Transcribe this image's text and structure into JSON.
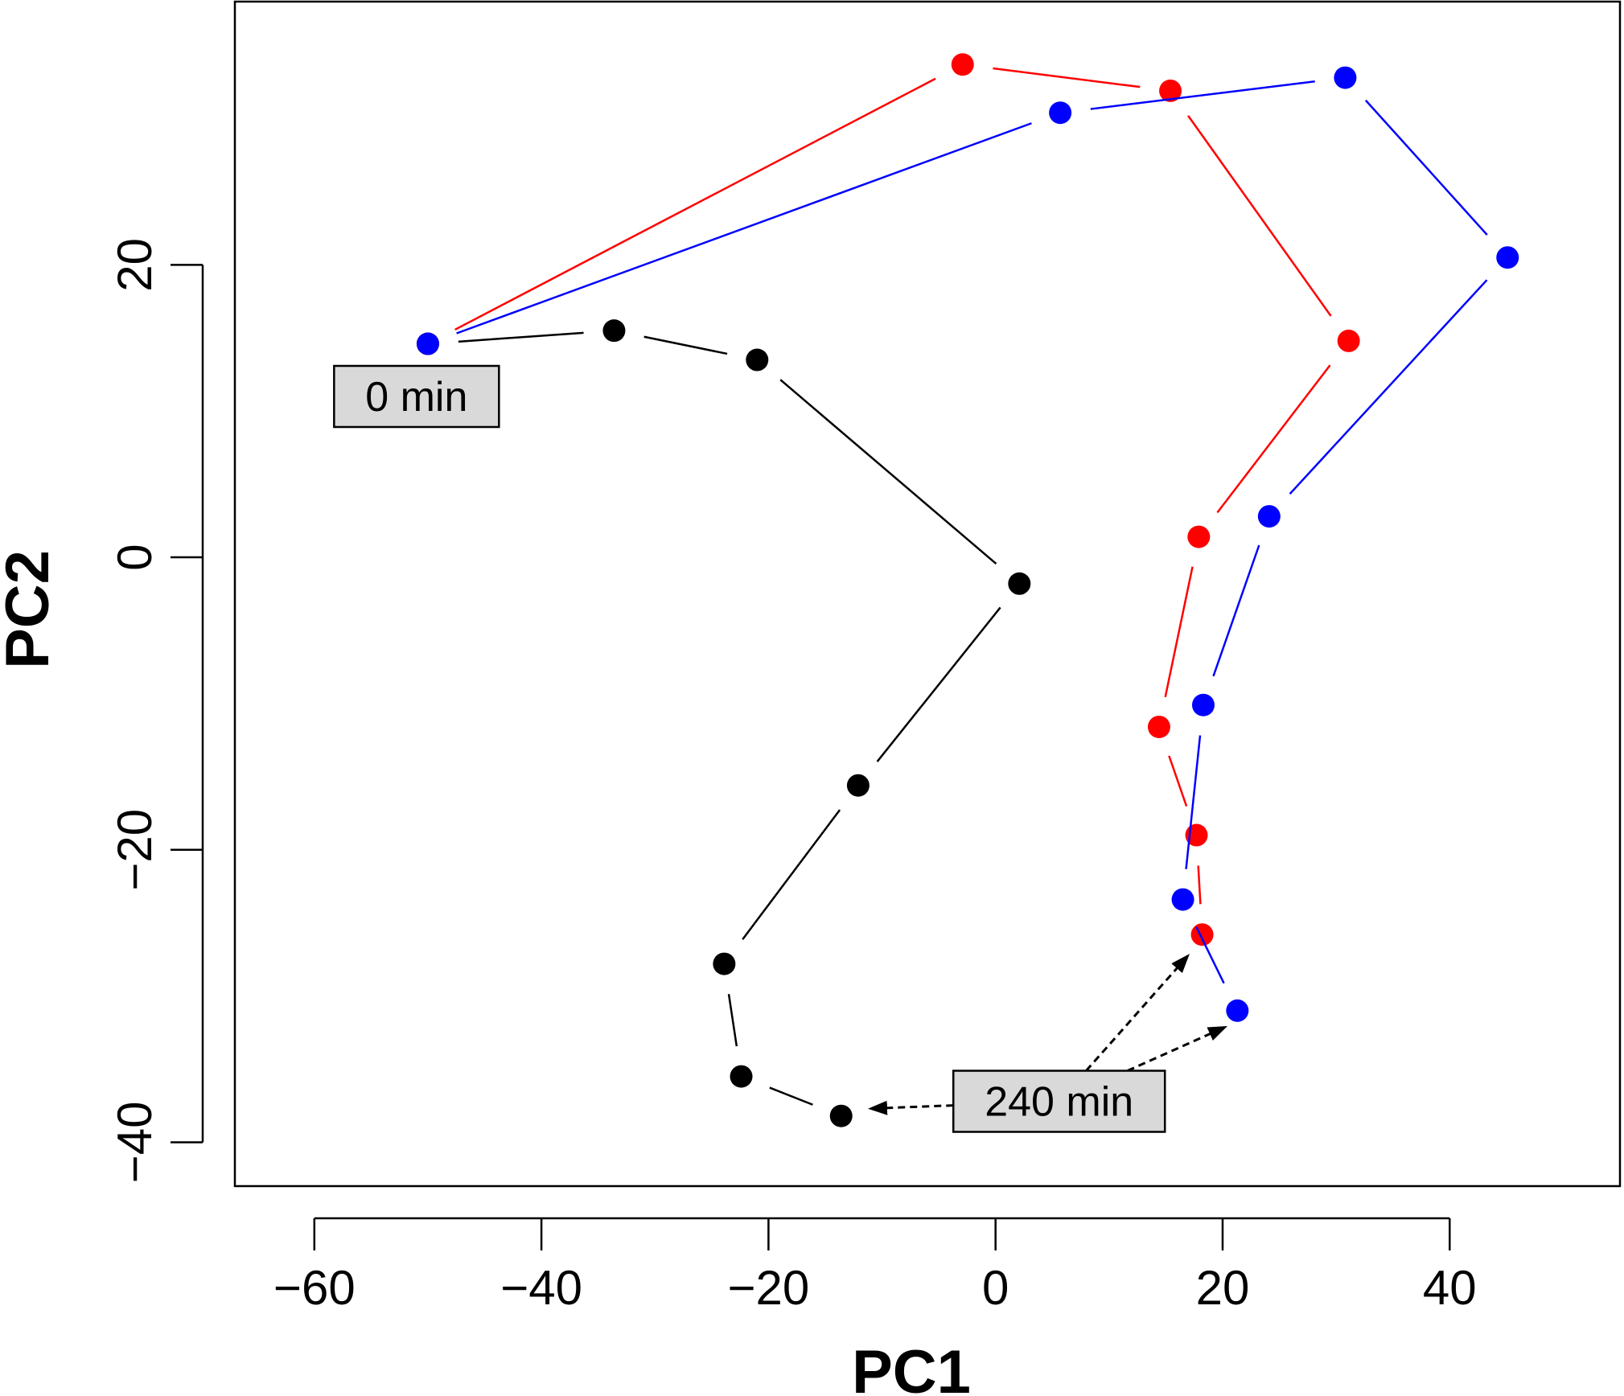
{
  "chart_data": {
    "type": "line",
    "title": "",
    "xlabel": "PC1",
    "ylabel": "PC2",
    "xlim": [
      -67,
      55
    ],
    "ylim": [
      -43,
      38
    ],
    "x_ticks": [
      -60,
      -40,
      -20,
      0,
      20,
      40
    ],
    "y_ticks": [
      20,
      0,
      -20,
      -40
    ],
    "x_tick_labels": [
      "−60",
      "−40",
      "−20",
      "0",
      "20",
      "40"
    ],
    "y_tick_labels": [
      "20",
      "0",
      "−20",
      "−40"
    ],
    "series": [
      {
        "name": "black",
        "color": "#000000",
        "points": [
          {
            "x": -50,
            "y": 14.6
          },
          {
            "x": -33.6,
            "y": 15.5
          },
          {
            "x": -21,
            "y": 13.5
          },
          {
            "x": 2.1,
            "y": -1.8
          },
          {
            "x": -12.1,
            "y": -15.6
          },
          {
            "x": -23.9,
            "y": -27.8
          },
          {
            "x": -22.4,
            "y": -35.5
          },
          {
            "x": -13.6,
            "y": -38.2
          }
        ]
      },
      {
        "name": "red",
        "color": "#ff0000",
        "points": [
          {
            "x": -50,
            "y": 14.6
          },
          {
            "x": -2.9,
            "y": 33.7
          },
          {
            "x": 15.4,
            "y": 31.9
          },
          {
            "x": 31.1,
            "y": 14.8
          },
          {
            "x": 17.9,
            "y": 1.4
          },
          {
            "x": 14.4,
            "y": -11.6
          },
          {
            "x": 17.7,
            "y": -19.0
          },
          {
            "x": 18.2,
            "y": -25.8
          }
        ]
      },
      {
        "name": "blue",
        "color": "#0000ff",
        "points": [
          {
            "x": -50,
            "y": 14.6
          },
          {
            "x": 5.7,
            "y": 30.4
          },
          {
            "x": 30.8,
            "y": 32.8
          },
          {
            "x": 45.1,
            "y": 20.5
          },
          {
            "x": 24.1,
            "y": 2.8
          },
          {
            "x": 18.3,
            "y": -10.1
          },
          {
            "x": 16.5,
            "y": -23.4
          },
          {
            "x": 21.3,
            "y": -31.0
          }
        ]
      }
    ],
    "annotations": [
      {
        "text": "0 min",
        "anchor_x": -51,
        "anchor_y": 11,
        "arrows_to": []
      },
      {
        "text": "240 min",
        "anchor_x": 5.6,
        "anchor_y": -37.2,
        "arrows_to": [
          {
            "x": -11.1,
            "y": -37.7
          },
          {
            "x": 17.0,
            "y": -27.2
          },
          {
            "x": 20.3,
            "y": -32.1
          }
        ]
      }
    ]
  }
}
